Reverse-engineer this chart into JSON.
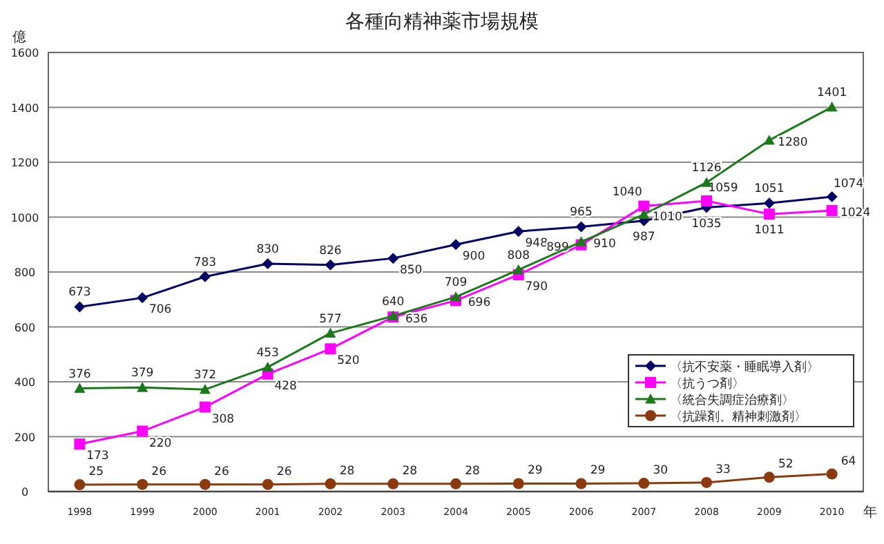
{
  "chart_data": {
    "type": "line",
    "title": "各種向精神薬市場規模",
    "ylabel": "億",
    "xlabel": "年",
    "categories": [
      "1998",
      "1999",
      "2000",
      "2001",
      "2002",
      "2003",
      "2004",
      "2005",
      "2006",
      "2007",
      "2008",
      "2009",
      "2010"
    ],
    "series": [
      {
        "name": "〈抗不安薬・睡眠導入剤〉",
        "color": "#000066",
        "marker": "diamond",
        "values": [
          673,
          706,
          783,
          830,
          826,
          850,
          900,
          948,
          965,
          987,
          1035,
          1051,
          1074
        ]
      },
      {
        "name": "〈抗うつ剤〉",
        "color": "#ff00ff",
        "marker": "square",
        "values": [
          173,
          220,
          308,
          428,
          520,
          636,
          696,
          790,
          899,
          1040,
          1059,
          1011,
          1024
        ]
      },
      {
        "name": "〈統合失調症治療剤〉",
        "color": "#1a7a1a",
        "marker": "triangle",
        "values": [
          376,
          379,
          372,
          453,
          577,
          640,
          709,
          808,
          910,
          1010,
          1126,
          1280,
          1401
        ]
      },
      {
        "name": "〈抗躁剤、精神刺激剤〉",
        "color": "#8b3a0e",
        "marker": "circle",
        "values": [
          25,
          26,
          26,
          26,
          28,
          28,
          28,
          29,
          29,
          30,
          33,
          52,
          64
        ]
      }
    ],
    "ylim": [
      0,
      1600
    ],
    "yticks": [
      0,
      200,
      400,
      600,
      800,
      1000,
      1200,
      1400,
      1600
    ],
    "grid": "y",
    "legend": "right",
    "data_labels": true
  }
}
